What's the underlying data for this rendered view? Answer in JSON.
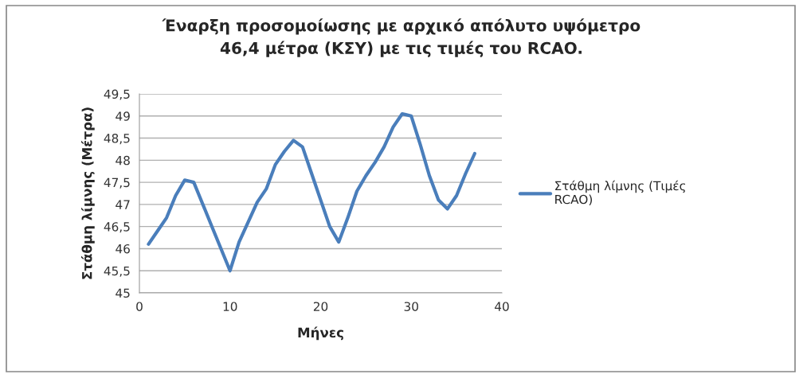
{
  "chart_data": {
    "type": "line",
    "title": "Έναρξη προσομοίωσης με αρχικό απόλυτο υψόμετρο\n46,4 μέτρα (ΚΣΥ) με τις τιμές του RCAO.",
    "xlabel": "Μήνες",
    "ylabel": "Στάθμη λίμνης (Μέτρα)",
    "x": [
      1,
      2,
      3,
      4,
      5,
      6,
      7,
      8,
      9,
      10,
      11,
      12,
      13,
      14,
      15,
      16,
      17,
      18,
      19,
      20,
      21,
      22,
      23,
      24,
      25,
      26,
      27,
      28,
      29,
      30,
      31,
      32,
      33,
      34,
      35,
      36,
      37
    ],
    "series": [
      {
        "name": "Στάθμη λίμνης (Τιμές\nRCAO)",
        "color": "#4a7ebb",
        "values": [
          46.1,
          46.4,
          46.7,
          47.2,
          47.55,
          47.5,
          47.0,
          46.5,
          46.0,
          45.5,
          46.15,
          46.6,
          47.05,
          47.35,
          47.9,
          48.2,
          48.45,
          48.3,
          47.7,
          47.1,
          46.5,
          46.15,
          46.7,
          47.3,
          47.65,
          47.95,
          48.3,
          48.75,
          49.05,
          49.0,
          48.35,
          47.65,
          47.1,
          46.9,
          47.2,
          47.7,
          48.15
        ]
      }
    ],
    "xlim": [
      0,
      40
    ],
    "xticks": [
      0,
      10,
      20,
      30,
      40
    ],
    "ylim": [
      45,
      49.5
    ],
    "yticks": [
      45,
      {
        "value": 45.5,
        "label": "45,5"
      },
      46,
      {
        "value": 46.5,
        "label": "46,5"
      },
      47,
      {
        "value": 47.5,
        "label": "47,5"
      },
      48,
      {
        "value": 48.5,
        "label": "48,5"
      },
      49,
      {
        "value": 49.5,
        "label": "49,5"
      }
    ],
    "grid": "y",
    "legend": "right",
    "line_style": "solid",
    "marker": "none"
  }
}
